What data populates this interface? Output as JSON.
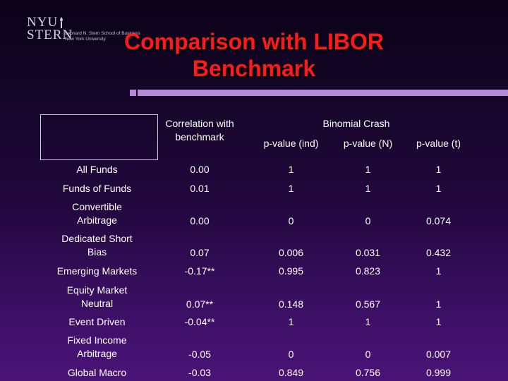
{
  "logo": {
    "line1": "NYU",
    "line2": "STERN",
    "school_line1": "Leonard N. Stern School of Business",
    "school_line2": "New York University"
  },
  "title": {
    "line1": "Comparison with LIBOR",
    "line2": "Benchmark"
  },
  "table": {
    "header": {
      "correlation": "Correlation with benchmark",
      "binomial": "Binomial Crash",
      "pind": "p-value (ind)",
      "pn": "p-value (N)",
      "pt": "p-value (t)"
    },
    "rows": [
      {
        "label": "All Funds",
        "corr": "0.00",
        "pind": "1",
        "pn": "1",
        "pt": "1"
      },
      {
        "label": "Funds of Funds",
        "corr": "0.01",
        "pind": "1",
        "pn": "1",
        "pt": "1"
      },
      {
        "label": "Convertible Arbitrage",
        "corr": "0.00",
        "pind": "0",
        "pn": "0",
        "pt": "0.074"
      },
      {
        "label": "Dedicated Short Bias",
        "corr": "0.07",
        "pind": "0.006",
        "pn": "0.031",
        "pt": "0.432"
      },
      {
        "label": "Emerging Markets",
        "corr": "-0.17**",
        "pind": "0.995",
        "pn": "0.823",
        "pt": "1"
      },
      {
        "label": "Equity Market Neutral",
        "corr": "0.07**",
        "pind": "0.148",
        "pn": "0.567",
        "pt": "1"
      },
      {
        "label": "Event Driven",
        "corr": "-0.04**",
        "pind": "1",
        "pn": "1",
        "pt": "1"
      },
      {
        "label": "Fixed Income Arbitrage",
        "corr": "-0.05",
        "pind": "0",
        "pn": "0",
        "pt": "0.007"
      },
      {
        "label": "Global Macro",
        "corr": "-0.03",
        "pind": "0.849",
        "pn": "0.756",
        "pt": "0.999"
      }
    ]
  }
}
